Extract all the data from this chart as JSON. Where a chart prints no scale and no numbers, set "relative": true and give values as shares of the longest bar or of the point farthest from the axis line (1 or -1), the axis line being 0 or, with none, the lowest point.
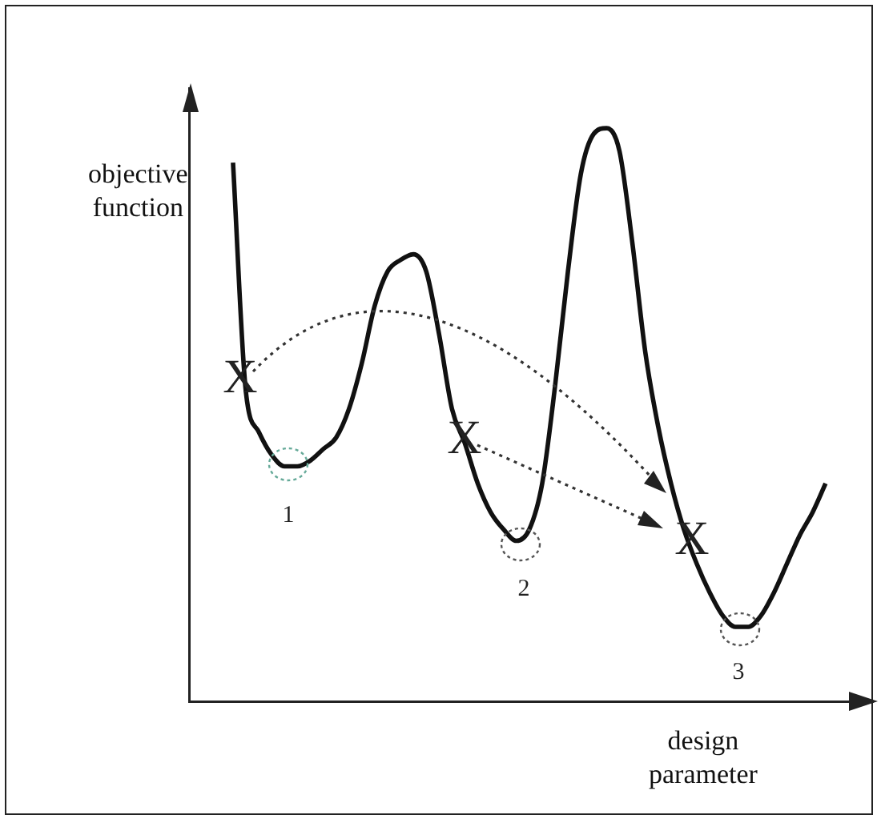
{
  "chart_data": {
    "type": "line",
    "relative": true,
    "xlabel": "design\nparameter",
    "ylabel": "objective\nfunction",
    "categories": [
      null,
      null,
      null,
      null,
      null,
      null,
      null,
      null,
      null,
      null,
      null,
      null,
      null,
      null,
      null,
      null,
      null,
      null,
      null,
      null,
      null,
      null,
      null,
      null,
      null,
      null,
      null,
      null,
      null,
      null,
      null,
      null,
      null,
      null,
      null,
      null,
      null,
      null,
      null,
      null,
      null,
      null,
      null,
      null,
      null,
      null,
      null
    ],
    "values": [
      0.94,
      0.54,
      0.47,
      0.43,
      0.41,
      0.41,
      0.42,
      0.44,
      0.46,
      0.51,
      0.59,
      0.69,
      0.75,
      0.77,
      0.78,
      0.75,
      0.64,
      0.51,
      0.45,
      0.38,
      0.33,
      0.3,
      0.28,
      0.3,
      0.38,
      0.55,
      0.75,
      0.92,
      0.99,
      1,
      0.96,
      0.8,
      0.61,
      0.48,
      0.38,
      0.3,
      0.24,
      0.19,
      0.15,
      0.13,
      0.13,
      0.15,
      0.19,
      0.24,
      0.29,
      0.33,
      0.38
    ],
    "color": "#111111",
    "annotations": [
      "X",
      "X",
      "X",
      "1",
      "2",
      "3"
    ],
    "marker": "none",
    "grid": false,
    "legend": false,
    "tick_labels": false
  }
}
